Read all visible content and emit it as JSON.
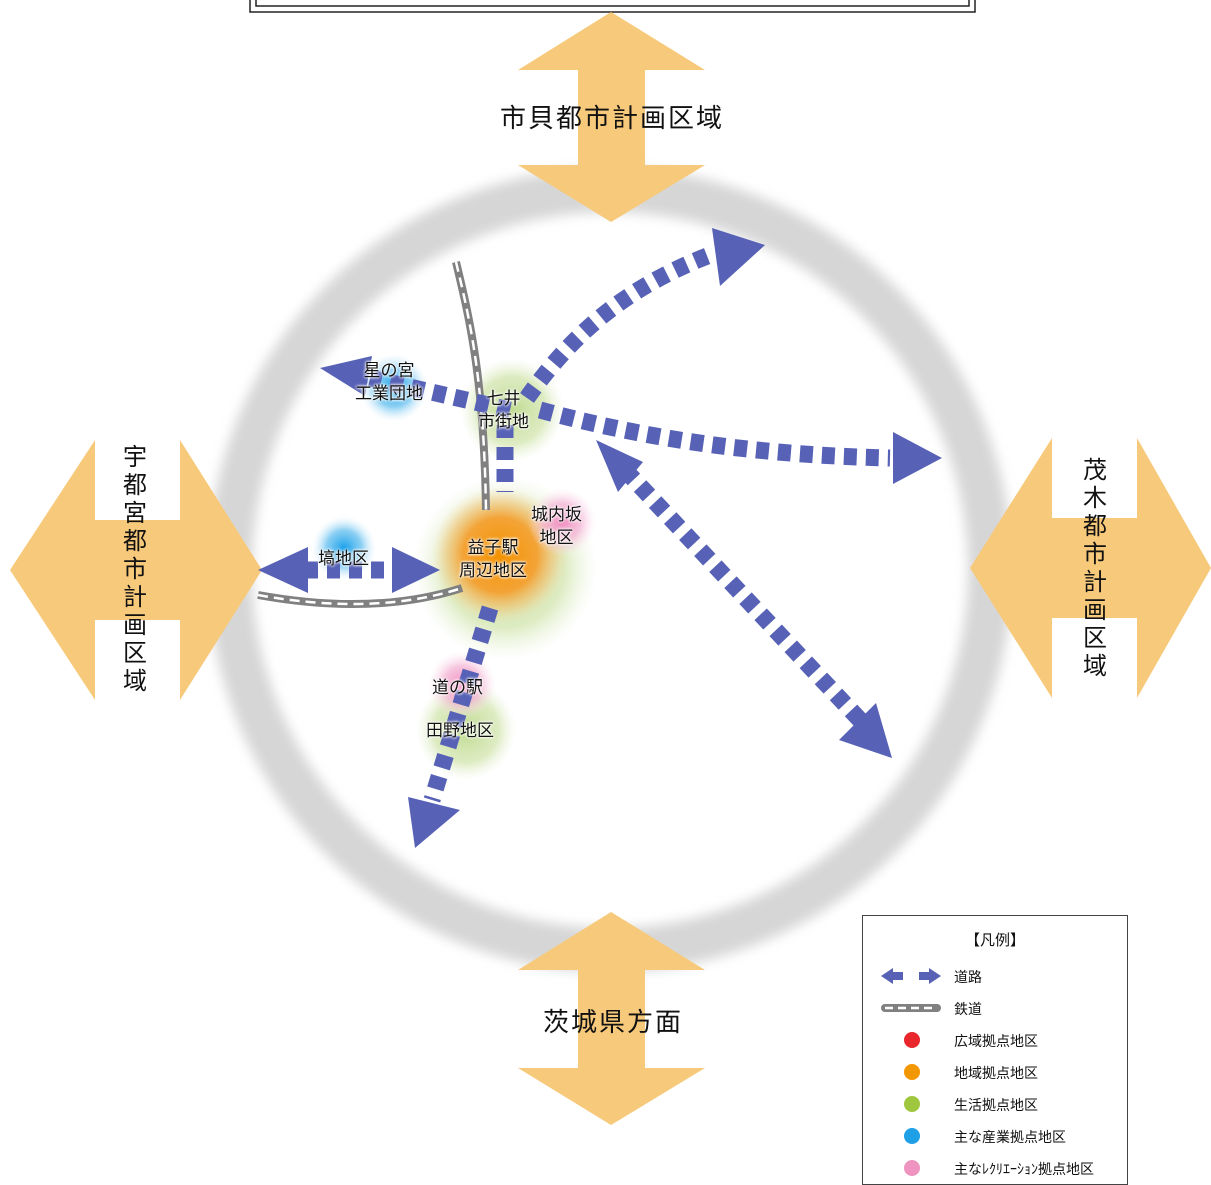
{
  "regions": {
    "north": "市貝都市計画区域",
    "west": "宇都宮都市計画区域",
    "east": "茂木都市計画区域",
    "south": "茨城県方面"
  },
  "areas": {
    "hoshinomiya": "星の宮\n工業団地",
    "shichii": "七井\n市街地",
    "mashiko_station": "益子駅\n周辺地区",
    "jonaizaka": "城内坂\n地区",
    "hanawa": "塙地区",
    "michinoeki": "道の駅",
    "tano": "田野地区"
  },
  "legend": {
    "title": "【凡例】",
    "items": [
      {
        "label": "道路",
        "symbol": "road-arrow-icon"
      },
      {
        "label": "鉄道",
        "symbol": "railway-icon"
      },
      {
        "label": "広域拠点地区",
        "color": "#e8262c"
      },
      {
        "label": "地域拠点地区",
        "color": "#f39700"
      },
      {
        "label": "生活拠点地区",
        "color": "#9fc73d"
      },
      {
        "label": "主な産業拠点地区",
        "color": "#1ea0e6"
      },
      {
        "label": "主なﾚｸﾘｴｰｼｮﾝ拠点地区",
        "color": "#ef93c0"
      }
    ]
  },
  "colors": {
    "region_arrow": "#f7c97a",
    "road": "#5762b6",
    "ring": "#dcdcdc",
    "rail": "#8a8a8a"
  }
}
